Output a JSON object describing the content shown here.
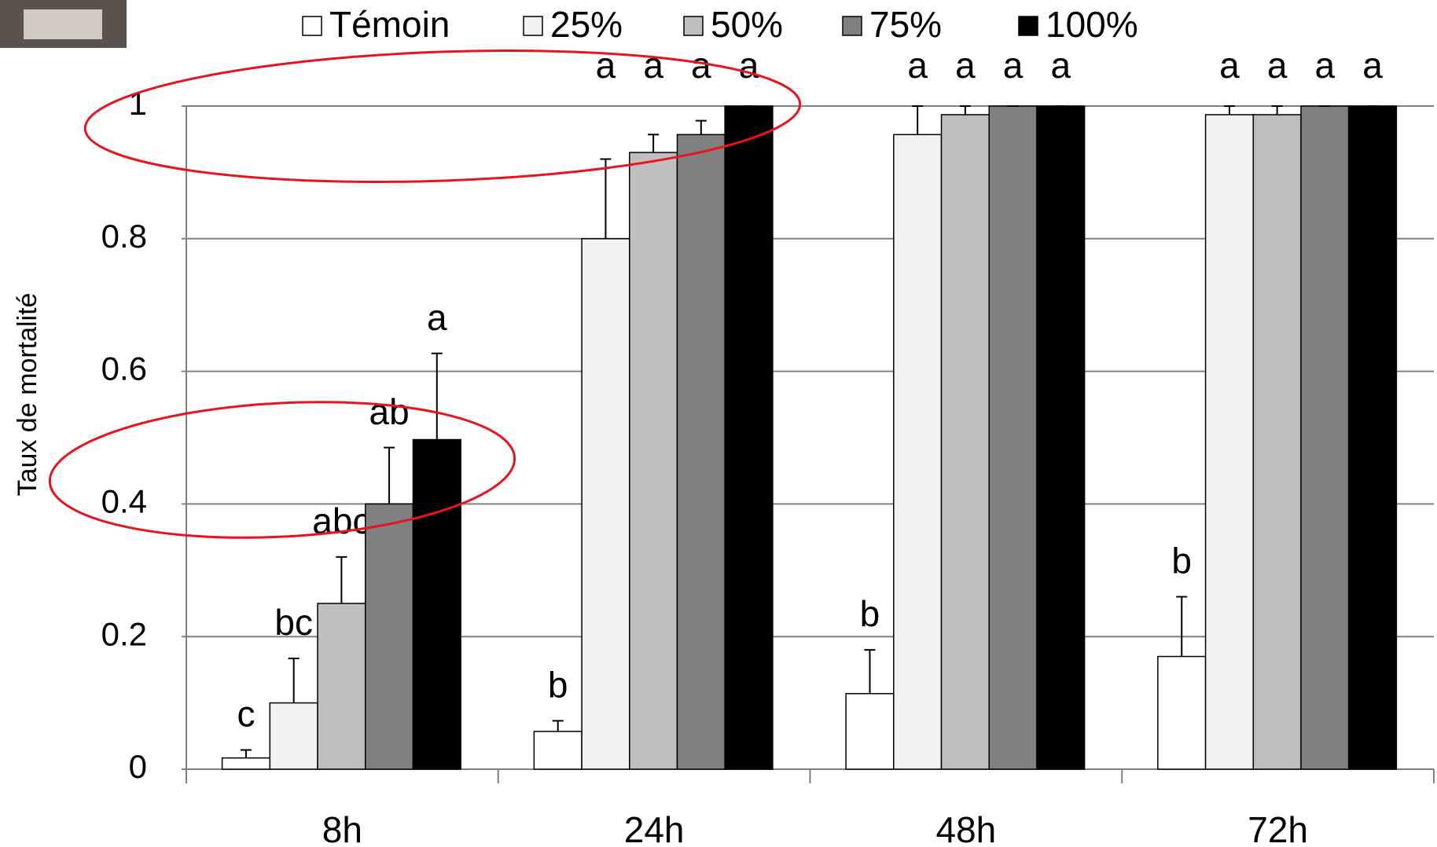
{
  "chart_data": {
    "type": "bar",
    "y_label": "Taux de mortalité",
    "categories": [
      "8h",
      "24h",
      "48h",
      "72h"
    ],
    "ylim": [
      0,
      1
    ],
    "yticks": [
      0,
      0.2,
      0.4,
      0.6,
      0.8,
      1
    ],
    "grid": true,
    "legend": "top",
    "series": [
      {
        "name": "Témoin",
        "color": "#ffffff",
        "values": [
          0.017,
          0.057,
          0.114,
          0.17
        ],
        "errors": [
          0.012,
          0.016,
          0.066,
          0.09
        ],
        "letters": [
          "c",
          "b",
          "b",
          "b"
        ]
      },
      {
        "name": "25%",
        "color": "#f2f2f2",
        "values": [
          0.1,
          0.8,
          0.957,
          0.987
        ],
        "errors": [
          0.067,
          0.12,
          0.043,
          0.013
        ],
        "letters": [
          "bc",
          "a",
          "a",
          "a"
        ]
      },
      {
        "name": "50%",
        "color": "#bfbfbf",
        "values": [
          0.25,
          0.93,
          0.987,
          0.987
        ],
        "errors": [
          0.07,
          0.027,
          0.013,
          0.013
        ],
        "letters": [
          "abc",
          "a",
          "a",
          "a"
        ]
      },
      {
        "name": "75%",
        "color": "#808080",
        "values": [
          0.4,
          0.957,
          1,
          1
        ],
        "errors": [
          0.085,
          0.021,
          0,
          0
        ],
        "letters": [
          "ab",
          "a",
          "a",
          "a"
        ]
      },
      {
        "name": "100%",
        "color": "#000000",
        "values": [
          0.497,
          1,
          1,
          1
        ],
        "errors": [
          0.13,
          0,
          0,
          0
        ],
        "letters": [
          "a",
          "a",
          "a",
          "a"
        ]
      }
    ]
  }
}
